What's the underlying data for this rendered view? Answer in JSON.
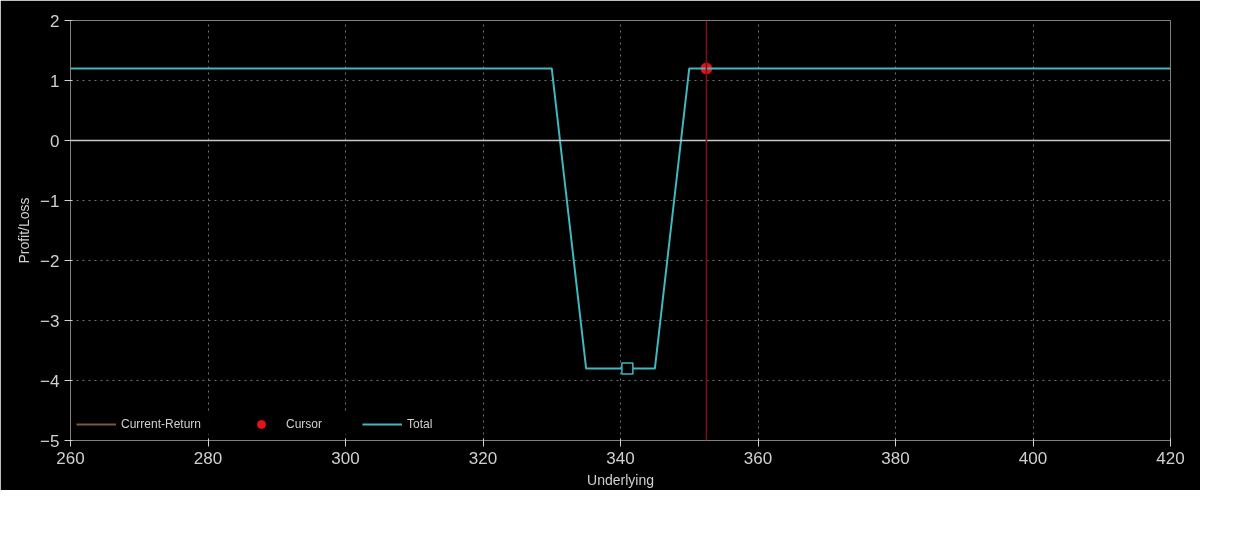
{
  "chart_data": {
    "type": "line",
    "xlabel": "Underlying",
    "ylabel": "Profit/Loss",
    "xlim": [
      260,
      420
    ],
    "ylim": [
      -5,
      2
    ],
    "xticks": [
      260,
      280,
      300,
      320,
      340,
      360,
      380,
      400,
      420
    ],
    "yticks": [
      -5,
      -4,
      -3,
      -2,
      -1,
      0,
      1,
      2
    ],
    "grid": true,
    "legend": "bottom",
    "line_style": "solid",
    "series": [
      {
        "name": "Current-Return",
        "type": "line",
        "color": "#7a5a3a"
      },
      {
        "name": "Cursor",
        "type": "scatter",
        "marker": "circle",
        "color": "#e8101a",
        "x": [
          352.5
        ],
        "values": [
          1.2
        ]
      },
      {
        "name": "Total",
        "color": "#3fb8c0",
        "x": [
          260,
          330,
          335,
          345,
          350,
          420
        ],
        "values": [
          1.2,
          1.2,
          -3.8,
          -3.8,
          1.2,
          1.2
        ]
      },
      {
        "type": "scatter",
        "marker": "square",
        "color": "#3fb8c0",
        "x": [
          341
        ],
        "values": [
          -3.8
        ]
      }
    ],
    "ref_lines": [
      {
        "axis": "y",
        "value": 0,
        "color": "#c8c8c8"
      },
      {
        "axis": "x",
        "value": 352.5,
        "color": "#7a1010"
      }
    ]
  }
}
